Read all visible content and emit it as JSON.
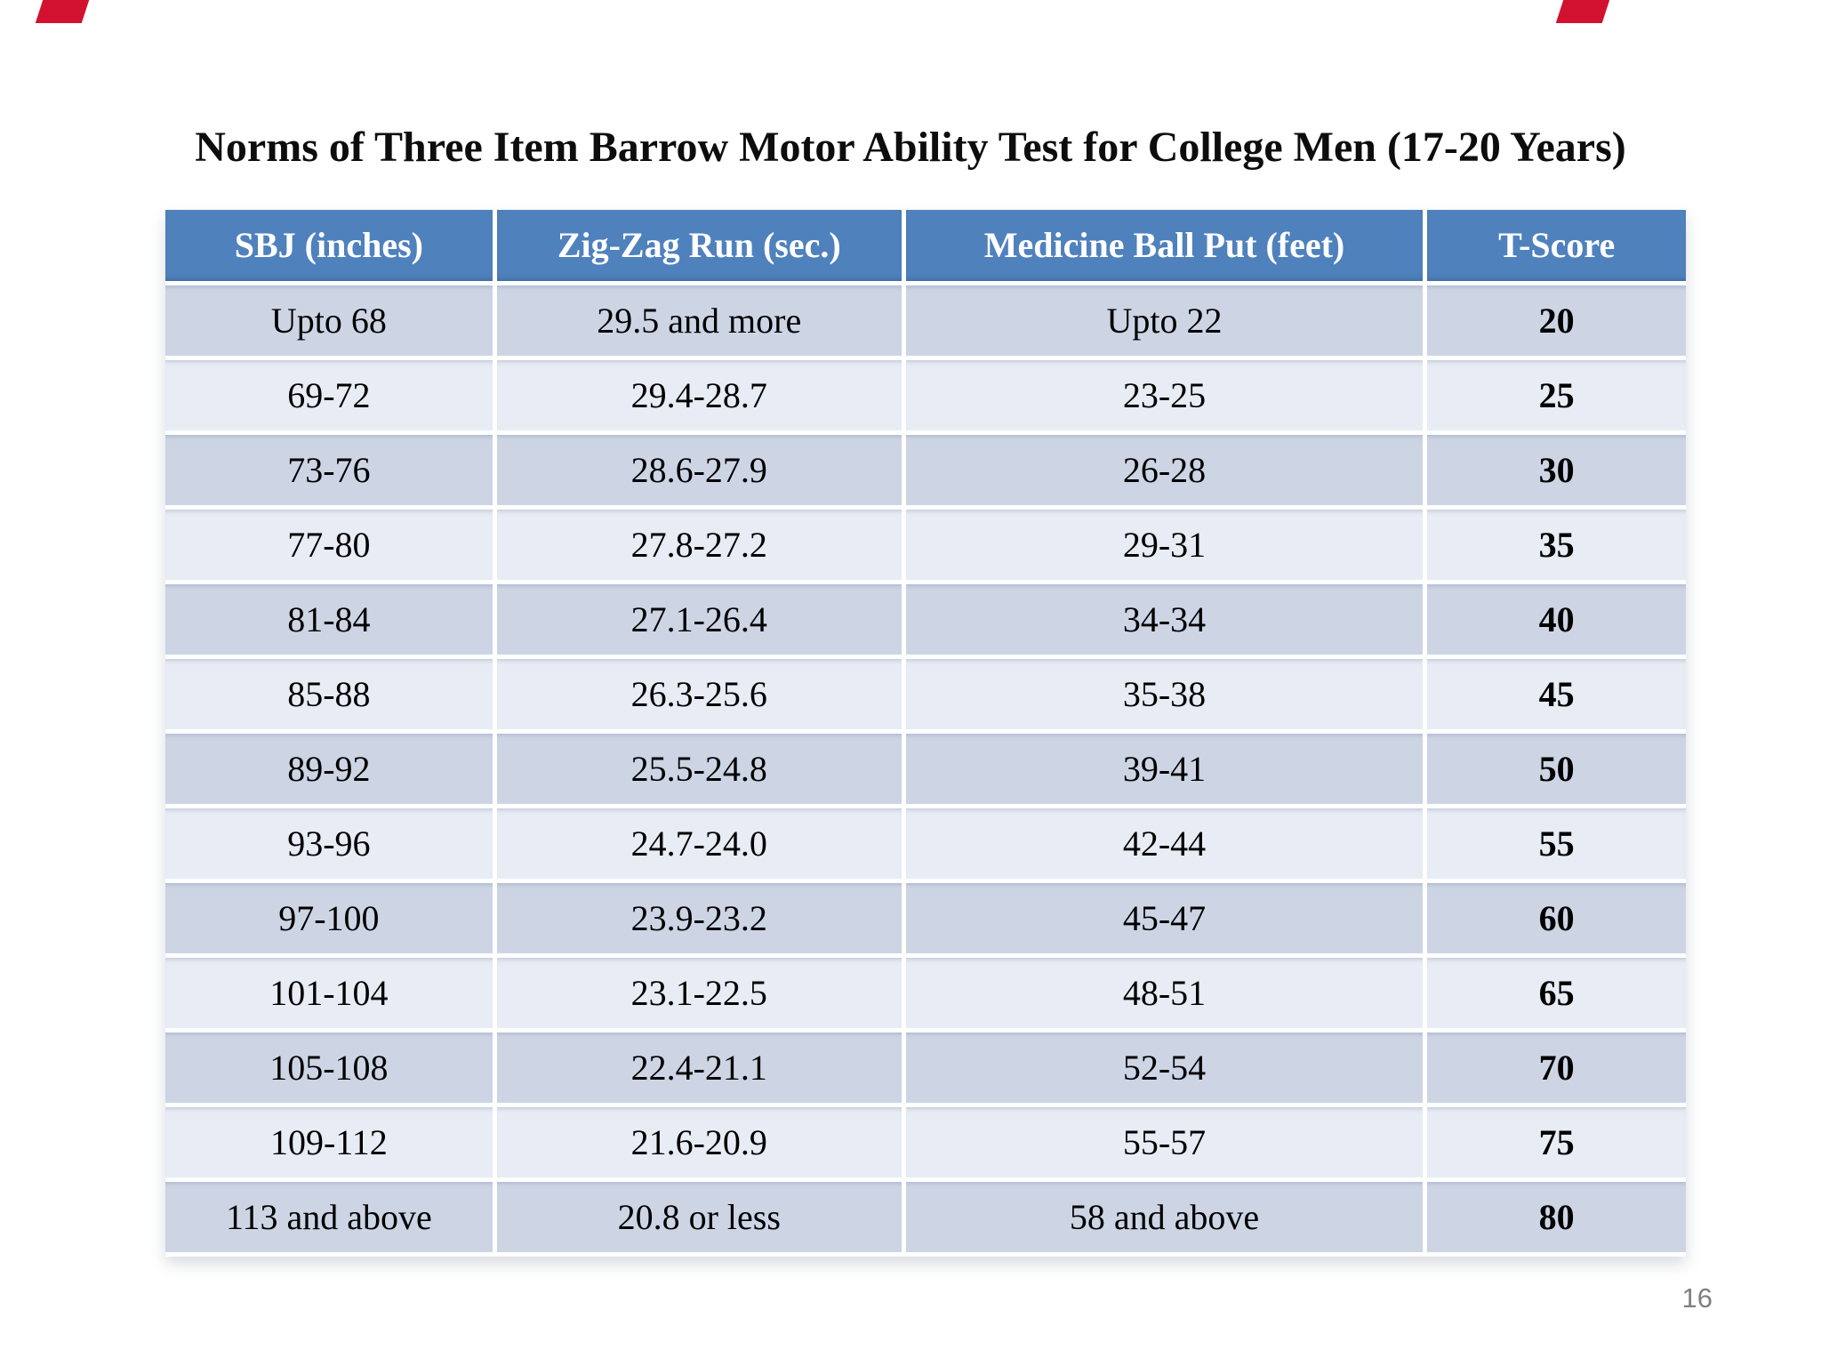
{
  "slide": {
    "title": "Norms of Three Item Barrow Motor Ability Test for College Men (17-20 Years)",
    "page_number": "16"
  },
  "colors": {
    "header_bg": "#4F81BD",
    "header_text": "#FFFFFF",
    "row_dark_bg": "#CDD5E5",
    "row_light_bg": "#E8ECF4",
    "red_mark": "#D2112F",
    "page_number": "#7F7F7F"
  },
  "chart_data": {
    "type": "table",
    "title": "Norms of Three Item Barrow Motor Ability Test for College Men (17-20 Years)",
    "columns": [
      "SBJ (inches)",
      "Zig-Zag Run (sec.)",
      "Medicine Ball Put (feet)",
      "T-Score"
    ],
    "rows": [
      [
        "Upto 68",
        "29.5 and more",
        "Upto 22",
        "20"
      ],
      [
        "69-72",
        "29.4-28.7",
        "23-25",
        "25"
      ],
      [
        "73-76",
        "28.6-27.9",
        "26-28",
        "30"
      ],
      [
        "77-80",
        "27.8-27.2",
        "29-31",
        "35"
      ],
      [
        "81-84",
        "27.1-26.4",
        "34-34",
        "40"
      ],
      [
        "85-88",
        "26.3-25.6",
        "35-38",
        "45"
      ],
      [
        "89-92",
        "25.5-24.8",
        "39-41",
        "50"
      ],
      [
        "93-96",
        "24.7-24.0",
        "42-44",
        "55"
      ],
      [
        "97-100",
        "23.9-23.2",
        "45-47",
        "60"
      ],
      [
        "101-104",
        "23.1-22.5",
        "48-51",
        "65"
      ],
      [
        "105-108",
        "22.4-21.1",
        "52-54",
        "70"
      ],
      [
        "109-112",
        "21.6-20.9",
        "55-57",
        "75"
      ],
      [
        "113 and above",
        "20.8 or less",
        "58 and above",
        "80"
      ]
    ]
  }
}
